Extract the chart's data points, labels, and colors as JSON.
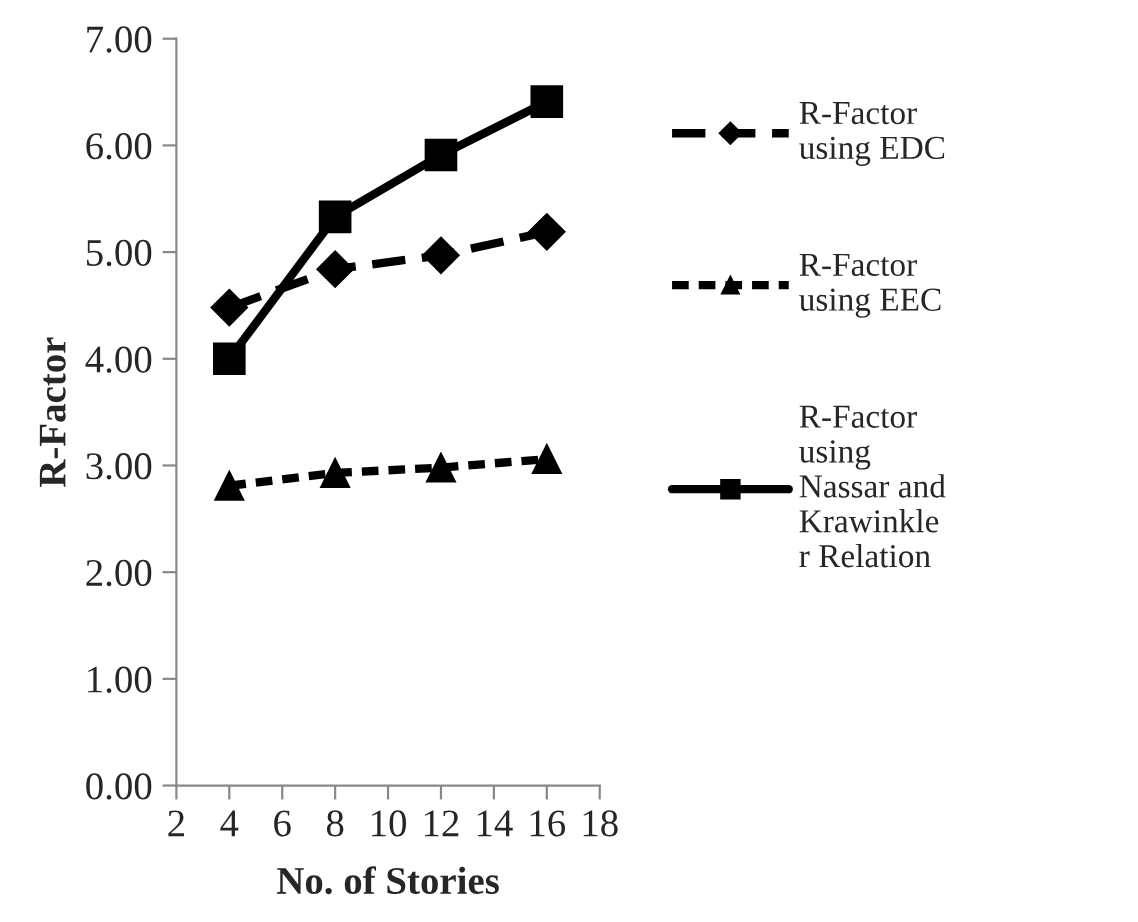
{
  "chart_data": {
    "type": "line",
    "xlabel": "No. of Stories",
    "ylabel": "R-Factor",
    "x": [
      4,
      8,
      12,
      16
    ],
    "series": [
      {
        "name": "R-Factor\nusing EDC",
        "color": "#000000",
        "marker": "diamond",
        "line_style": "dashed",
        "values": [
          4.48,
          4.84,
          4.97,
          5.19
        ]
      },
      {
        "name": "R-Factor\nusing EEC",
        "color": "#000000",
        "marker": "triangle",
        "line_style": "dotted",
        "values": [
          2.81,
          2.93,
          2.98,
          3.06
        ]
      },
      {
        "name": "R-Factor\nusing\nNassar and\nKrawinkle\nr Relation",
        "color": "#000000",
        "marker": "square",
        "line_style": "solid",
        "values": [
          4.0,
          5.33,
          5.91,
          6.41
        ]
      }
    ],
    "xlim": [
      2,
      18
    ],
    "xticks": [
      2,
      4,
      6,
      8,
      10,
      12,
      14,
      16,
      18
    ],
    "ylim": [
      0,
      7
    ],
    "yticks": [
      {
        "value": 0,
        "label": "0.00"
      },
      {
        "value": 1,
        "label": "1.00"
      },
      {
        "value": 2,
        "label": "2.00"
      },
      {
        "value": 3,
        "label": "3.00"
      },
      {
        "value": 4,
        "label": "4.00"
      },
      {
        "value": 5,
        "label": "5.00"
      },
      {
        "value": 6,
        "label": "6.00"
      },
      {
        "value": 7,
        "label": "7.00"
      }
    ],
    "grid": false,
    "legend": "right"
  }
}
